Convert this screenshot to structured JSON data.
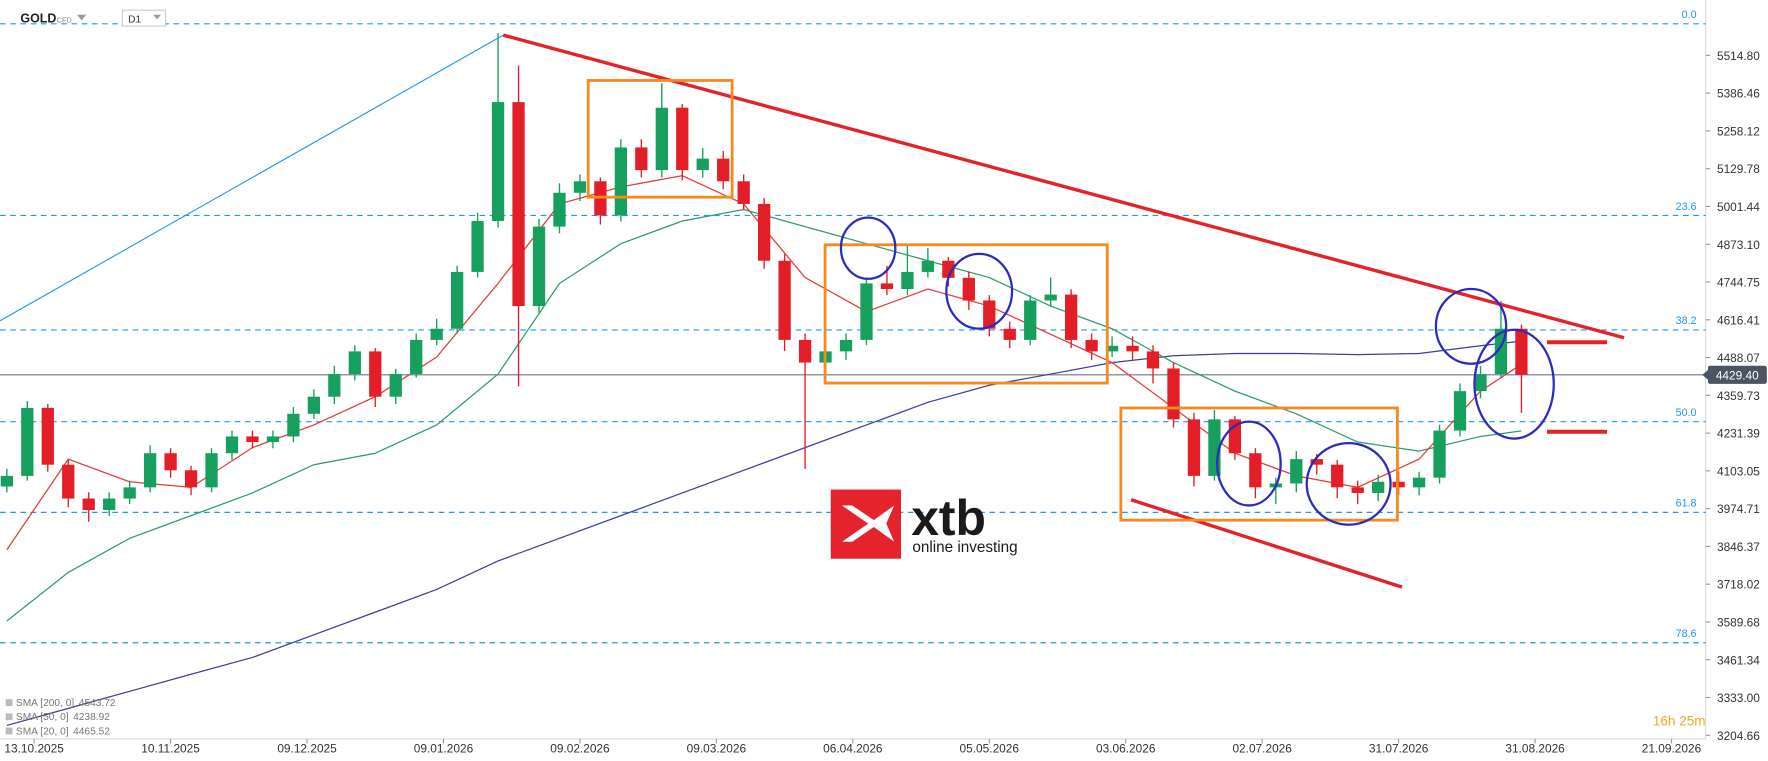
{
  "chart_data": {
    "type": "candlestick",
    "symbol": "GOLD",
    "instrument_tag": "CFD",
    "interval": "D1",
    "x": [
      0,
      3,
      6,
      9,
      12,
      15,
      18,
      21,
      24,
      27,
      30,
      33,
      36,
      39,
      42,
      45,
      48,
      51,
      54,
      57,
      60,
      63,
      66,
      69,
      72,
      75,
      78,
      81,
      84,
      87,
      90,
      93,
      96,
      99,
      102,
      105,
      108,
      111,
      114,
      117,
      120,
      123,
      126,
      129,
      132,
      135,
      138,
      141,
      144,
      147,
      150,
      153,
      156,
      159,
      162,
      165,
      168,
      171,
      174,
      177,
      180,
      183,
      186,
      189,
      192,
      195,
      198,
      201,
      204,
      207,
      210,
      213,
      216,
      219,
      222
    ],
    "open": [
      4050,
      4086,
      4317,
      4124,
      4009,
      3970,
      4009,
      4047,
      4163,
      4105,
      4047,
      4163,
      4220,
      4201,
      4220,
      4297,
      4355,
      4432,
      4509,
      4355,
      4432,
      4548,
      4586,
      4779,
      4952,
      5356,
      4663,
      4933,
      5048,
      5087,
      4971,
      5202,
      5125,
      5337,
      5125,
      5164,
      5087,
      5010,
      4817,
      4548,
      4471,
      4509,
      4548,
      4740,
      4721,
      4779,
      4817,
      4759,
      4682,
      4586,
      4548,
      4682,
      4702,
      4548,
      4509,
      4528,
      4509,
      4451,
      4278,
      4086,
      4278,
      4163,
      4047,
      4060,
      4143,
      4124,
      4047,
      4028,
      4066,
      4047,
      4080,
      4240,
      4374,
      4432,
      4586
    ],
    "high": [
      4110,
      4340,
      4330,
      4140,
      4030,
      4030,
      4070,
      4190,
      4180,
      4120,
      4180,
      4240,
      4240,
      4240,
      4320,
      4380,
      4460,
      4530,
      4520,
      4450,
      4570,
      4620,
      4800,
      4980,
      5590,
      5480,
      4960,
      5080,
      5110,
      5100,
      5230,
      5230,
      5420,
      5350,
      5200,
      5190,
      5110,
      5030,
      4840,
      4570,
      4540,
      4570,
      4760,
      4800,
      4870,
      4860,
      4830,
      4780,
      4700,
      4610,
      4700,
      4760,
      4720,
      4570,
      4560,
      4560,
      4530,
      4470,
      4300,
      4310,
      4290,
      4180,
      4080,
      4170,
      4160,
      4140,
      4070,
      4090,
      4100,
      4100,
      4260,
      4400,
      4460,
      4680,
      4600
    ],
    "low": [
      4030,
      4070,
      4100,
      3980,
      3930,
      3950,
      3990,
      4030,
      4080,
      4020,
      4030,
      4140,
      4180,
      4180,
      4200,
      4280,
      4330,
      4410,
      4320,
      4330,
      4420,
      4530,
      4570,
      4760,
      4930,
      4390,
      4640,
      4910,
      5020,
      4940,
      4950,
      5100,
      5100,
      5090,
      5100,
      5060,
      4990,
      4790,
      4510,
      4110,
      4440,
      4480,
      4530,
      4700,
      4700,
      4760,
      4730,
      4650,
      4560,
      4520,
      4530,
      4660,
      4520,
      4480,
      4490,
      4480,
      4400,
      4250,
      4050,
      4070,
      4140,
      4010,
      3990,
      4030,
      4090,
      4010,
      3990,
      4000,
      4020,
      4020,
      4060,
      4220,
      4350,
      4420,
      4300
    ],
    "close": [
      4086,
      4317,
      4124,
      4009,
      3970,
      4009,
      4047,
      4163,
      4105,
      4047,
      4163,
      4220,
      4201,
      4220,
      4297,
      4355,
      4432,
      4509,
      4355,
      4432,
      4548,
      4586,
      4779,
      4952,
      5356,
      4663,
      4933,
      5048,
      5087,
      4971,
      5202,
      5125,
      5337,
      5125,
      5164,
      5087,
      5010,
      4817,
      4548,
      4471,
      4509,
      4548,
      4740,
      4721,
      4779,
      4817,
      4759,
      4682,
      4586,
      4548,
      4682,
      4702,
      4548,
      4509,
      4528,
      4509,
      4451,
      4278,
      4086,
      4278,
      4163,
      4047,
      4060,
      4143,
      4124,
      4047,
      4028,
      4066,
      4047,
      4080,
      4240,
      4374,
      4432,
      4586,
      4429.4
    ],
    "up_color": "#17a05d",
    "down_color": "#e41e26",
    "xlim": [
      -1,
      249
    ],
    "ylim": [
      3200,
      5703
    ],
    "yticks": [
      {
        "value": 5514.8,
        "label": "5514.80"
      },
      5386.46,
      5258.12,
      5129.78,
      5001.44,
      {
        "value": 4873.1,
        "label": "4873.10"
      },
      4744.75,
      4616.41,
      4488.07,
      4359.73,
      4231.39,
      4103.05,
      3974.71,
      3846.37,
      3718.02,
      3589.68,
      3461.34,
      {
        "value": 3333,
        "label": "3333.00"
      },
      3204.66
    ],
    "xticks": [
      {
        "value": 4,
        "label": "13.10.2025"
      },
      {
        "value": 24,
        "label": "10.11.2025"
      },
      {
        "value": 44,
        "label": "09.12.2025"
      },
      {
        "value": 64,
        "label": "09.01.2026"
      },
      {
        "value": 84,
        "label": "09.02.2026"
      },
      {
        "value": 104,
        "label": "09.03.2026"
      },
      {
        "value": 124,
        "label": "06.04.2026"
      },
      {
        "value": 144,
        "label": "05.05.2026"
      },
      {
        "value": 164,
        "label": "03.06.2026"
      },
      {
        "value": 184,
        "label": "02.07.2026"
      },
      {
        "value": 204,
        "label": "31.07.2026"
      },
      {
        "value": 224,
        "label": "31.08.2026"
      },
      {
        "value": 244,
        "label": "21.09.2026"
      }
    ],
    "sma_x": [
      0,
      9,
      18,
      27,
      36,
      45,
      54,
      63,
      72,
      81,
      90,
      99,
      108,
      117,
      126,
      135,
      144,
      153,
      162,
      171,
      180,
      189,
      198,
      207,
      216,
      222
    ],
    "overlays": [
      {
        "name": "SMA [200, 0]",
        "color": "#3d3f9a",
        "values": [
          3238,
          3296,
          3354,
          3412,
          3469,
          3546,
          3623,
          3700,
          3797,
          3874,
          3951,
          4028,
          4105,
          4182,
          4259,
          4336,
          4394,
          4432,
          4471,
          4494,
          4502,
          4502,
          4498,
          4502,
          4528,
          4543.72
        ]
      },
      {
        "name": "SMA [50, 0]",
        "color": "#2e9b6b",
        "values": [
          3593,
          3758,
          3874,
          3951,
          4028,
          4124,
          4163,
          4259,
          4432,
          4740,
          4875,
          4952,
          4991,
          4933,
          4875,
          4817,
          4760,
          4663,
          4586,
          4471,
          4374,
          4297,
          4201,
          4170,
          4220,
          4238.92
        ]
      },
      {
        "name": "SMA [20, 0]",
        "color": "#e33a3a",
        "values": [
          3835,
          4143,
          4066,
          4047,
          4182,
          4259,
          4355,
          4490,
          4740,
          5010,
          5068,
          5106,
          5010,
          4760,
          4644,
          4721,
          4663,
          4567,
          4471,
          4317,
          4163,
          4086,
          4047,
          4143,
          4374,
          4465.52
        ]
      }
    ],
    "fib_color": "#2196f3",
    "fib_levels": [
      {
        "level": {
          "value": 0,
          "label": "0.0"
        },
        "price": 5622
      },
      {
        "level": 23.6,
        "price": 4971
      },
      {
        "level": 38.2,
        "price": 4582
      },
      {
        "level": {
          "value": 50,
          "label": "50.0"
        },
        "price": 4270
      },
      {
        "level": 61.8,
        "price": 3962
      },
      {
        "level": 78.6,
        "price": 3519
      }
    ],
    "last_price": {
      "value": 4429.4,
      "label": "4429.40"
    },
    "countdown": "16h 25m",
    "logo": {
      "brand": "xtb",
      "tagline": "online investing"
    }
  }
}
